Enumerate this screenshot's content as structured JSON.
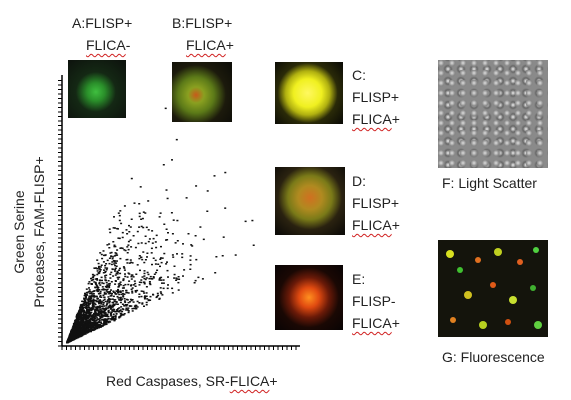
{
  "panels": [
    {
      "title": "A:FLISP+",
      "underlined": "FLICA",
      "suffix": "-"
    },
    {
      "title": "B:FLISP+",
      "underlined": "FLICA",
      "suffix": "+"
    },
    {
      "letter": "C:",
      "line": "FLISP+",
      "underlined": "FLICA",
      "suffix": "+"
    },
    {
      "letter": "D:",
      "line": "FLISP+",
      "underlined": "FLICA",
      "suffix": "+"
    },
    {
      "letter": "E:",
      "line": "FLISP-",
      "underlined": "FLICA",
      "suffix": "+"
    },
    {
      "label": "F: Light Scatter"
    },
    {
      "label": "G: Fluorescence"
    }
  ],
  "scatter_plot": {
    "y_axis_label": [
      "Green Serine",
      "Proteases, FAM-FLISP+"
    ],
    "x_axis_label": {
      "prefix": "Red Caspases, SR-",
      "underlined": "FLICA",
      "suffix": "+"
    }
  }
}
